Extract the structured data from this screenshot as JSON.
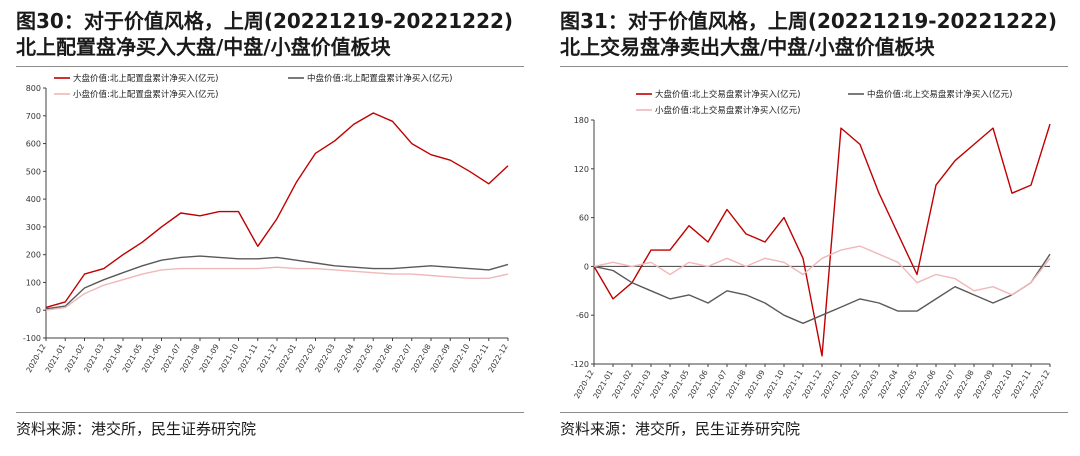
{
  "charts": [
    {
      "title": "图30：对于价值风格，上周(20221219-20221222)北上配置盘净买入大盘/中盘/小盘价值板块",
      "source": "资料来源：港交所，民生证券研究院",
      "chart_data": {
        "type": "line",
        "ylim": [
          -100,
          800
        ],
        "yticks": [
          -100,
          0,
          100,
          200,
          300,
          400,
          500,
          600,
          700,
          800
        ],
        "xlim": [
          "2020-12",
          "2022-12"
        ],
        "xticks": [
          "2020-12",
          "2021-01",
          "2021-02",
          "2021-03",
          "2021-04",
          "2021-05",
          "2021-06",
          "2021-07",
          "2021-08",
          "2021-09",
          "2021-10",
          "2021-11",
          "2021-12",
          "2022-01",
          "2022-02",
          "2022-03",
          "2022-04",
          "2022-05",
          "2022-06",
          "2022-07",
          "2022-08",
          "2022-09",
          "2022-10",
          "2022-11",
          "2022-12"
        ],
        "grid": false,
        "legend_position": "top",
        "series": [
          {
            "name": "大盘价值:北上配置盘累计净买入(亿元)",
            "color": "#c00000",
            "x": [
              "2020-12",
              "2021-01",
              "2021-02",
              "2021-03",
              "2021-04",
              "2021-05",
              "2021-06",
              "2021-07",
              "2021-08",
              "2021-09",
              "2021-10",
              "2021-11",
              "2021-12",
              "2022-01",
              "2022-02",
              "2022-03",
              "2022-04",
              "2022-05",
              "2022-06",
              "2022-07",
              "2022-08",
              "2022-09",
              "2022-10",
              "2022-11",
              "2022-12"
            ],
            "values": [
              10,
              30,
              130,
              150,
              200,
              245,
              300,
              350,
              340,
              355,
              355,
              230,
              330,
              460,
              565,
              610,
              670,
              710,
              680,
              600,
              560,
              540,
              500,
              455,
              520
            ]
          },
          {
            "name": "中盘价值:北上配置盘累计净买入(亿元)",
            "color": "#595959",
            "x": [
              "2020-12",
              "2021-01",
              "2021-02",
              "2021-03",
              "2021-04",
              "2021-05",
              "2021-06",
              "2021-07",
              "2021-08",
              "2021-09",
              "2021-10",
              "2021-11",
              "2021-12",
              "2022-01",
              "2022-02",
              "2022-03",
              "2022-04",
              "2022-05",
              "2022-06",
              "2022-07",
              "2022-08",
              "2022-09",
              "2022-10",
              "2022-11",
              "2022-12"
            ],
            "values": [
              5,
              15,
              80,
              110,
              135,
              160,
              180,
              190,
              195,
              190,
              185,
              185,
              190,
              180,
              170,
              160,
              155,
              150,
              150,
              155,
              160,
              155,
              150,
              145,
              165
            ]
          },
          {
            "name": "小盘价值:北上配置盘累计净买入(亿元)",
            "color": "#f0b8b8",
            "x": [
              "2020-12",
              "2021-01",
              "2021-02",
              "2021-03",
              "2021-04",
              "2021-05",
              "2021-06",
              "2021-07",
              "2021-08",
              "2021-09",
              "2021-10",
              "2021-11",
              "2021-12",
              "2022-01",
              "2022-02",
              "2022-03",
              "2022-04",
              "2022-05",
              "2022-06",
              "2022-07",
              "2022-08",
              "2022-09",
              "2022-10",
              "2022-11",
              "2022-12"
            ],
            "values": [
              0,
              10,
              60,
              90,
              110,
              130,
              145,
              150,
              150,
              150,
              150,
              150,
              155,
              150,
              150,
              145,
              140,
              135,
              130,
              130,
              125,
              120,
              115,
              115,
              130
            ]
          }
        ]
      }
    },
    {
      "title": "图31：对于价值风格，上周(20221219-20221222)北上交易盘净卖出大盘/中盘/小盘价值板块",
      "source": "资料来源：港交所，民生证券研究院",
      "chart_data": {
        "type": "line",
        "ylim": [
          -120,
          180
        ],
        "yticks": [
          -120,
          -60,
          0,
          60,
          120,
          180
        ],
        "xlim": [
          "2020-12",
          "2022-12"
        ],
        "xticks": [
          "2020-12",
          "2021-01",
          "2021-02",
          "2021-03",
          "2021-04",
          "2021-05",
          "2021-06",
          "2021-07",
          "2021-08",
          "2021-09",
          "2021-10",
          "2021-11",
          "2021-12",
          "2022-01",
          "2022-02",
          "2022-03",
          "2022-04",
          "2022-05",
          "2022-06",
          "2022-07",
          "2022-08",
          "2022-09",
          "2022-10",
          "2022-11",
          "2022-12"
        ],
        "grid": false,
        "zero_line": true,
        "legend_position": "top",
        "series": [
          {
            "name": "大盘价值:北上交易盘累计净买入(亿元)",
            "color": "#c00000",
            "x": [
              "2020-12",
              "2021-01",
              "2021-02",
              "2021-03",
              "2021-04",
              "2021-05",
              "2021-06",
              "2021-07",
              "2021-08",
              "2021-09",
              "2021-10",
              "2021-11",
              "2021-12",
              "2022-01",
              "2022-02",
              "2022-03",
              "2022-04",
              "2022-05",
              "2022-06",
              "2022-07",
              "2022-08",
              "2022-09",
              "2022-10",
              "2022-11",
              "2022-12"
            ],
            "values": [
              0,
              -40,
              -20,
              20,
              20,
              50,
              30,
              70,
              40,
              30,
              60,
              10,
              -110,
              170,
              150,
              90,
              40,
              -10,
              100,
              130,
              150,
              170,
              90,
              100,
              175
            ]
          },
          {
            "name": "中盘价值:北上交易盘累计净买入(亿元)",
            "color": "#595959",
            "x": [
              "2020-12",
              "2021-01",
              "2021-02",
              "2021-03",
              "2021-04",
              "2021-05",
              "2021-06",
              "2021-07",
              "2021-08",
              "2021-09",
              "2021-10",
              "2021-11",
              "2021-12",
              "2022-01",
              "2022-02",
              "2022-03",
              "2022-04",
              "2022-05",
              "2022-06",
              "2022-07",
              "2022-08",
              "2022-09",
              "2022-10",
              "2022-11",
              "2022-12"
            ],
            "values": [
              0,
              -5,
              -20,
              -30,
              -40,
              -35,
              -45,
              -30,
              -35,
              -45,
              -60,
              -70,
              -60,
              -50,
              -40,
              -45,
              -55,
              -55,
              -40,
              -25,
              -35,
              -45,
              -35,
              -20,
              15
            ]
          },
          {
            "name": "小盘价值:北上交易盘累计净买入(亿元)",
            "color": "#f0b8b8",
            "x": [
              "2020-12",
              "2021-01",
              "2021-02",
              "2021-03",
              "2021-04",
              "2021-05",
              "2021-06",
              "2021-07",
              "2021-08",
              "2021-09",
              "2021-10",
              "2021-11",
              "2021-12",
              "2022-01",
              "2022-02",
              "2022-03",
              "2022-04",
              "2022-05",
              "2022-06",
              "2022-07",
              "2022-08",
              "2022-09",
              "2022-10",
              "2022-11",
              "2022-12"
            ],
            "values": [
              0,
              5,
              0,
              5,
              -10,
              5,
              0,
              10,
              0,
              10,
              5,
              -10,
              10,
              20,
              25,
              15,
              5,
              -20,
              -10,
              -15,
              -30,
              -25,
              -35,
              -20,
              10
            ]
          }
        ]
      }
    }
  ]
}
